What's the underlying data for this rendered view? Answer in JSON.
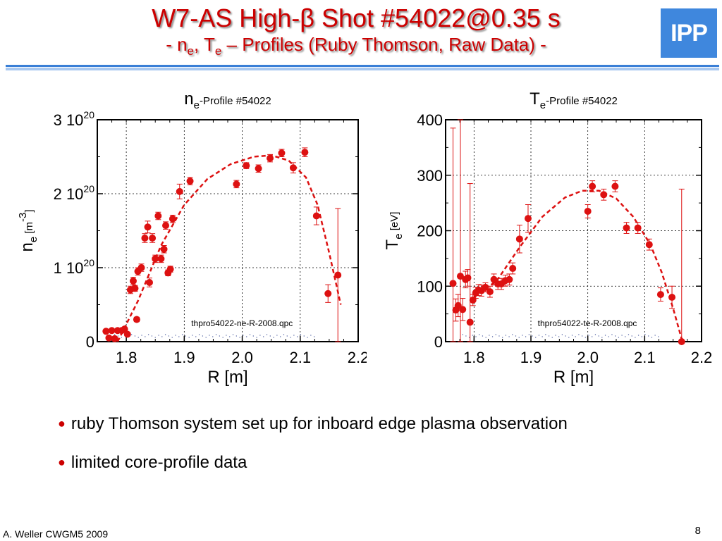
{
  "slide": {
    "title_prefix": "W7-AS High-",
    "title_beta": "β",
    "title_suffix": " Shot #54022@0.35 s",
    "subtitle": {
      "part1": "- n",
      "ne_sub": "e",
      "part2": ", T",
      "te_sub": "e",
      "part3": " – Profiles (Ruby Thomson, Raw Data) -"
    },
    "logo_text": "IPP",
    "accent_color": "#cc0000",
    "rule_color": "#3a7fd6",
    "bullets": [
      "ruby Thomson system set up for inboard edge plasma observation",
      "limited core-profile data"
    ],
    "bullet_glyph": "●",
    "footer_left": "A. Weller CWGM5 2009",
    "page_number": "8"
  },
  "chart_data": [
    {
      "type": "scatter",
      "title_base": "n",
      "title_sub": "e",
      "title_rest": "-Profile #54022",
      "xlabel": "R [m]",
      "ylabel_base": "n",
      "ylabel_sub": "e",
      "ylabel_unit": " [m",
      "ylabel_exp": "-3",
      "ylabel_close": "]",
      "xlim": [
        1.75,
        2.2
      ],
      "ylim": [
        0,
        3e+20
      ],
      "x_ticks": [
        1.8,
        1.9,
        2.0,
        2.1,
        2.2
      ],
      "x_tick_labels": [
        "1.8",
        "1.9",
        "2.0",
        "2.1",
        "2.2"
      ],
      "y_ticks": [
        0,
        1e+20,
        2e+20,
        3e+20
      ],
      "y_tick_labels": [
        {
          "base": "0",
          "exp": ""
        },
        {
          "base": "1 10",
          "exp": "20"
        },
        {
          "base": "2 10",
          "exp": "20"
        },
        {
          "base": "3 10",
          "exp": "20"
        }
      ],
      "grid": true,
      "annotation": "thpro54022-ne-R-2008.qpc",
      "marker_color": "#dd1111",
      "fit_color": "#dd1111",
      "points": [
        {
          "x": 1.765,
          "y": 1.4e+19,
          "err": 2e+18
        },
        {
          "x": 1.77,
          "y": 5e+18,
          "err": 1e+18
        },
        {
          "x": 1.775,
          "y": 1.5e+19,
          "err": 2e+18
        },
        {
          "x": 1.78,
          "y": 4e+18,
          "err": 1e+18
        },
        {
          "x": 1.785,
          "y": 1.5e+19,
          "err": 2e+18
        },
        {
          "x": 1.792,
          "y": 1.5e+19,
          "err": 2e+18
        },
        {
          "x": 1.797,
          "y": 1.7e+19,
          "err": 2e+18
        },
        {
          "x": 1.802,
          "y": 1e+19,
          "err": 2e+18
        },
        {
          "x": 1.807,
          "y": 7e+19,
          "err": 5e+18
        },
        {
          "x": 1.812,
          "y": 8.2e+19,
          "err": 5e+18
        },
        {
          "x": 1.815,
          "y": 7.2e+19,
          "err": 4e+18
        },
        {
          "x": 1.82,
          "y": 9.5e+19,
          "err": 5e+18
        },
        {
          "x": 1.818,
          "y": 3e+19,
          "err": 3e+18
        },
        {
          "x": 1.826,
          "y": 1e+20,
          "err": 5e+18
        },
        {
          "x": 1.832,
          "y": 1.4e+20,
          "err": 6e+18
        },
        {
          "x": 1.837,
          "y": 1.55e+20,
          "err": 8e+18
        },
        {
          "x": 1.84,
          "y": 8e+19,
          "err": 6e+18
        },
        {
          "x": 1.845,
          "y": 1.4e+20,
          "err": 6e+18
        },
        {
          "x": 1.85,
          "y": 1.12e+20,
          "err": 5e+18
        },
        {
          "x": 1.855,
          "y": 1.7e+20,
          "err": 5e+18
        },
        {
          "x": 1.86,
          "y": 1.12e+20,
          "err": 5e+18
        },
        {
          "x": 1.865,
          "y": 1.25e+20,
          "err": 5e+18
        },
        {
          "x": 1.868,
          "y": 1.57e+20,
          "err": 5e+18
        },
        {
          "x": 1.872,
          "y": 9.3e+19,
          "err": 4e+18
        },
        {
          "x": 1.876,
          "y": 9.8e+19,
          "err": 4e+18
        },
        {
          "x": 1.88,
          "y": 1.66e+20,
          "err": 5e+18
        },
        {
          "x": 1.892,
          "y": 2.03e+20,
          "err": 1e+19
        },
        {
          "x": 1.91,
          "y": 2.17e+20,
          "err": 5e+18
        },
        {
          "x": 1.99,
          "y": 2.13e+20,
          "err": 5e+18
        },
        {
          "x": 2.007,
          "y": 2.38e+20,
          "err": 4e+18
        },
        {
          "x": 2.028,
          "y": 2.34e+20,
          "err": 5e+18
        },
        {
          "x": 2.048,
          "y": 2.48e+20,
          "err": 5e+18
        },
        {
          "x": 2.068,
          "y": 2.55e+20,
          "err": 5e+18
        },
        {
          "x": 2.088,
          "y": 2.35e+20,
          "err": 7e+18
        },
        {
          "x": 2.108,
          "y": 2.56e+20,
          "err": 6e+18
        },
        {
          "x": 2.128,
          "y": 1.7e+20,
          "err": 1.2e+19
        },
        {
          "x": 2.148,
          "y": 6.5e+19,
          "err": 1.2e+19
        },
        {
          "x": 2.165,
          "y": 9e+19,
          "err": 9e+19
        }
      ],
      "fit": [
        [
          1.785,
          0.0
        ],
        [
          1.82,
          5.5e+19
        ],
        [
          1.86,
          1.3e+20
        ],
        [
          1.9,
          1.85e+20
        ],
        [
          1.94,
          2.2e+20
        ],
        [
          1.98,
          2.4e+20
        ],
        [
          2.02,
          2.5e+20
        ],
        [
          2.05,
          2.52e+20
        ],
        [
          2.08,
          2.45e+20
        ],
        [
          2.11,
          2.22e+20
        ],
        [
          2.13,
          1.85e+20
        ],
        [
          2.15,
          1.2e+20
        ],
        [
          2.17,
          5e+19
        ]
      ]
    },
    {
      "type": "scatter",
      "title_base": "T",
      "title_sub": "e",
      "title_rest": "-Profile #54022",
      "xlabel": "R [m]",
      "ylabel_base": "T",
      "ylabel_sub": "e",
      "ylabel_unit": " [eV]",
      "ylabel_exp": "",
      "ylabel_close": "",
      "xlim": [
        1.75,
        2.2
      ],
      "ylim": [
        0,
        400
      ],
      "x_ticks": [
        1.8,
        1.9,
        2.0,
        2.1,
        2.2
      ],
      "x_tick_labels": [
        "1.8",
        "1.9",
        "2.0",
        "2.1",
        "2.2"
      ],
      "y_ticks": [
        0,
        100,
        200,
        300,
        400
      ],
      "y_tick_labels": [
        {
          "base": "0",
          "exp": ""
        },
        {
          "base": "100",
          "exp": ""
        },
        {
          "base": "200",
          "exp": ""
        },
        {
          "base": "300",
          "exp": ""
        },
        {
          "base": "400",
          "exp": ""
        }
      ],
      "grid": true,
      "annotation": "thpro54022-te-R-2008.qpc",
      "marker_color": "#dd1111",
      "fit_color": "#dd1111",
      "points": [
        {
          "x": 1.763,
          "y": 105,
          "err": 280
        },
        {
          "x": 1.768,
          "y": 57,
          "err": 20
        },
        {
          "x": 1.772,
          "y": 65,
          "err": 20
        },
        {
          "x": 1.776,
          "y": 118,
          "err": 290
        },
        {
          "x": 1.78,
          "y": 58,
          "err": 20
        },
        {
          "x": 1.785,
          "y": 112,
          "err": 15
        },
        {
          "x": 1.789,
          "y": 115,
          "err": 15
        },
        {
          "x": 1.793,
          "y": 35,
          "err": 250
        },
        {
          "x": 1.798,
          "y": 75,
          "err": 10
        },
        {
          "x": 1.803,
          "y": 88,
          "err": 10
        },
        {
          "x": 1.808,
          "y": 93,
          "err": 10
        },
        {
          "x": 1.813,
          "y": 92,
          "err": 10
        },
        {
          "x": 1.82,
          "y": 98,
          "err": 8
        },
        {
          "x": 1.828,
          "y": 90,
          "err": 10
        },
        {
          "x": 1.835,
          "y": 112,
          "err": 10
        },
        {
          "x": 1.842,
          "y": 104,
          "err": 10
        },
        {
          "x": 1.848,
          "y": 104,
          "err": 10
        },
        {
          "x": 1.855,
          "y": 110,
          "err": 10
        },
        {
          "x": 1.862,
          "y": 112,
          "err": 10
        },
        {
          "x": 1.868,
          "y": 132,
          "err": 10
        },
        {
          "x": 1.88,
          "y": 185,
          "err": 25
        },
        {
          "x": 1.895,
          "y": 222,
          "err": 25
        },
        {
          "x": 2.0,
          "y": 235,
          "err": 12
        },
        {
          "x": 2.008,
          "y": 280,
          "err": 10
        },
        {
          "x": 2.028,
          "y": 265,
          "err": 10
        },
        {
          "x": 2.048,
          "y": 280,
          "err": 10
        },
        {
          "x": 2.068,
          "y": 205,
          "err": 10
        },
        {
          "x": 2.088,
          "y": 205,
          "err": 10
        },
        {
          "x": 2.108,
          "y": 175,
          "err": 10
        },
        {
          "x": 2.128,
          "y": 85,
          "err": 12
        },
        {
          "x": 2.148,
          "y": 80,
          "err": 20
        },
        {
          "x": 2.165,
          "y": 0,
          "err": 275
        }
      ],
      "fit": [
        [
          1.8,
          80
        ],
        [
          1.84,
          110
        ],
        [
          1.88,
          170
        ],
        [
          1.92,
          225
        ],
        [
          1.96,
          260
        ],
        [
          1.99,
          272
        ],
        [
          2.02,
          272
        ],
        [
          2.05,
          258
        ],
        [
          2.08,
          225
        ],
        [
          2.11,
          175
        ],
        [
          2.13,
          125
        ],
        [
          2.15,
          60
        ],
        [
          2.165,
          5
        ]
      ]
    }
  ]
}
